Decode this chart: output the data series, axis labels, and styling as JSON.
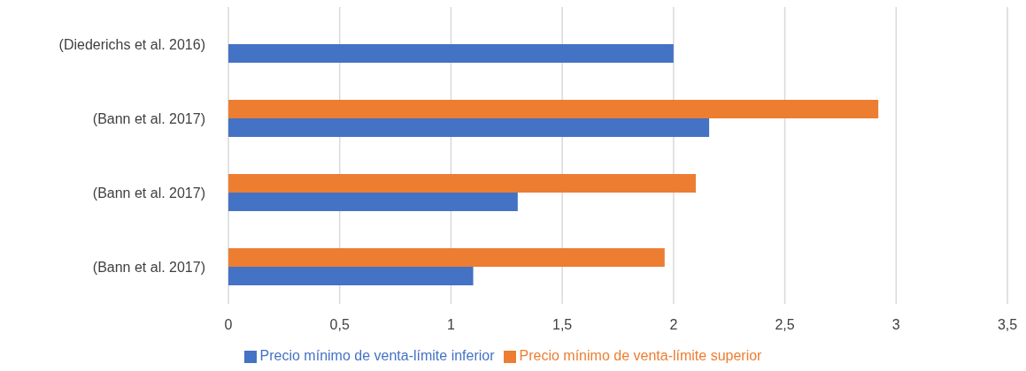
{
  "chart_data": {
    "type": "bar",
    "orientation": "horizontal",
    "categories": [
      "(Diederichs et al. 2016)",
      "(Bann et al. 2017)",
      "(Bann et al. 2017)",
      "(Bann et al. 2017)"
    ],
    "series": [
      {
        "name": "Precio mínimo de venta-límite superior",
        "color": "#ed7d31",
        "values": [
          null,
          2.92,
          2.1,
          1.96
        ]
      },
      {
        "name": "Precio mínimo de venta-límite inferior",
        "color": "#4472c4",
        "values": [
          2.0,
          2.16,
          1.3,
          1.1
        ]
      }
    ],
    "xlim": [
      0,
      3.5
    ],
    "xticks": [
      0,
      {
        "value": 0.5,
        "label": "0,5"
      },
      1,
      {
        "value": 1.5,
        "label": "1,5"
      },
      2,
      {
        "value": 2.5,
        "label": "2,5"
      },
      3,
      {
        "value": 3.5,
        "label": "3,5"
      }
    ],
    "grid": "x",
    "legend": "bottom"
  }
}
